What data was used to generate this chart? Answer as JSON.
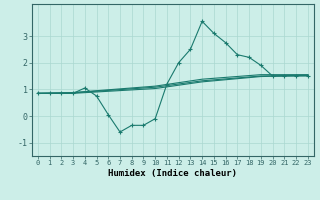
{
  "xlabel": "Humidex (Indice chaleur)",
  "bg_color": "#cceee8",
  "grid_color": "#aad8d0",
  "line_color": "#1a7a6e",
  "xlim": [
    -0.5,
    23.5
  ],
  "ylim": [
    -1.5,
    4.2
  ],
  "yticks": [
    -1,
    0,
    1,
    2,
    3
  ],
  "xticks": [
    0,
    1,
    2,
    3,
    4,
    5,
    6,
    7,
    8,
    9,
    10,
    11,
    12,
    13,
    14,
    15,
    16,
    17,
    18,
    19,
    20,
    21,
    22,
    23
  ],
  "line1_x": [
    0,
    1,
    2,
    3,
    4,
    5,
    6,
    7,
    8,
    9,
    10,
    11,
    12,
    13,
    14,
    15,
    16,
    17,
    18,
    19,
    20,
    21,
    22,
    23
  ],
  "line1_y": [
    0.85,
    0.85,
    0.85,
    0.85,
    1.05,
    0.75,
    0.05,
    -0.6,
    -0.35,
    -0.35,
    -0.1,
    1.2,
    2.0,
    2.5,
    3.55,
    3.1,
    2.75,
    2.3,
    2.2,
    1.9,
    1.5,
    1.5,
    1.5,
    1.5
  ],
  "line2_x": [
    0,
    3,
    10,
    14,
    19,
    23
  ],
  "line2_y": [
    0.85,
    0.88,
    1.12,
    1.38,
    1.55,
    1.55
  ],
  "line3_x": [
    0,
    3,
    10,
    14,
    19,
    23
  ],
  "line3_y": [
    0.85,
    0.87,
    1.08,
    1.32,
    1.5,
    1.53
  ],
  "line4_x": [
    0,
    3,
    10,
    14,
    19,
    23
  ],
  "line4_y": [
    0.85,
    0.85,
    1.03,
    1.28,
    1.48,
    1.52
  ]
}
